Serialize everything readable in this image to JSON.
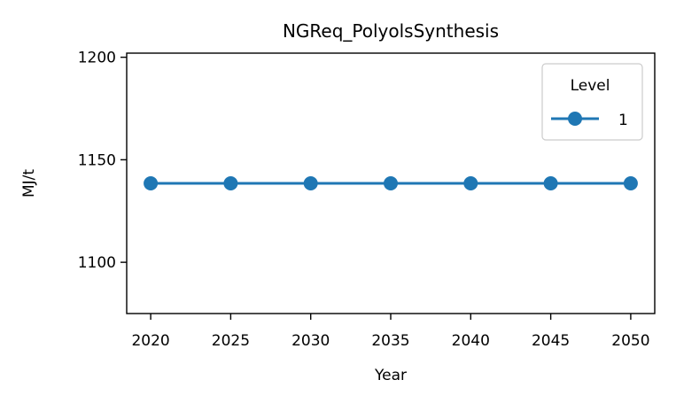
{
  "chart_data": {
    "type": "line",
    "title": "NGReq_PolyolsSynthesis",
    "xlabel": "Year",
    "ylabel": "MJ/t",
    "x": [
      2020,
      2025,
      2030,
      2035,
      2040,
      2045,
      2050
    ],
    "xticks": [
      2020,
      2025,
      2030,
      2035,
      2040,
      2045,
      2050
    ],
    "yticks": [
      1100,
      1150,
      1200
    ],
    "xlim": [
      2018.5,
      2051.5
    ],
    "ylim": [
      1075,
      1202
    ],
    "grid": false,
    "legend": {
      "title": "Level",
      "placement": "top-right"
    },
    "series": [
      {
        "name": "1",
        "color": "#1f77b4",
        "values": [
          1138.5,
          1138.5,
          1138.5,
          1138.5,
          1138.5,
          1138.5,
          1138.5
        ]
      }
    ]
  }
}
